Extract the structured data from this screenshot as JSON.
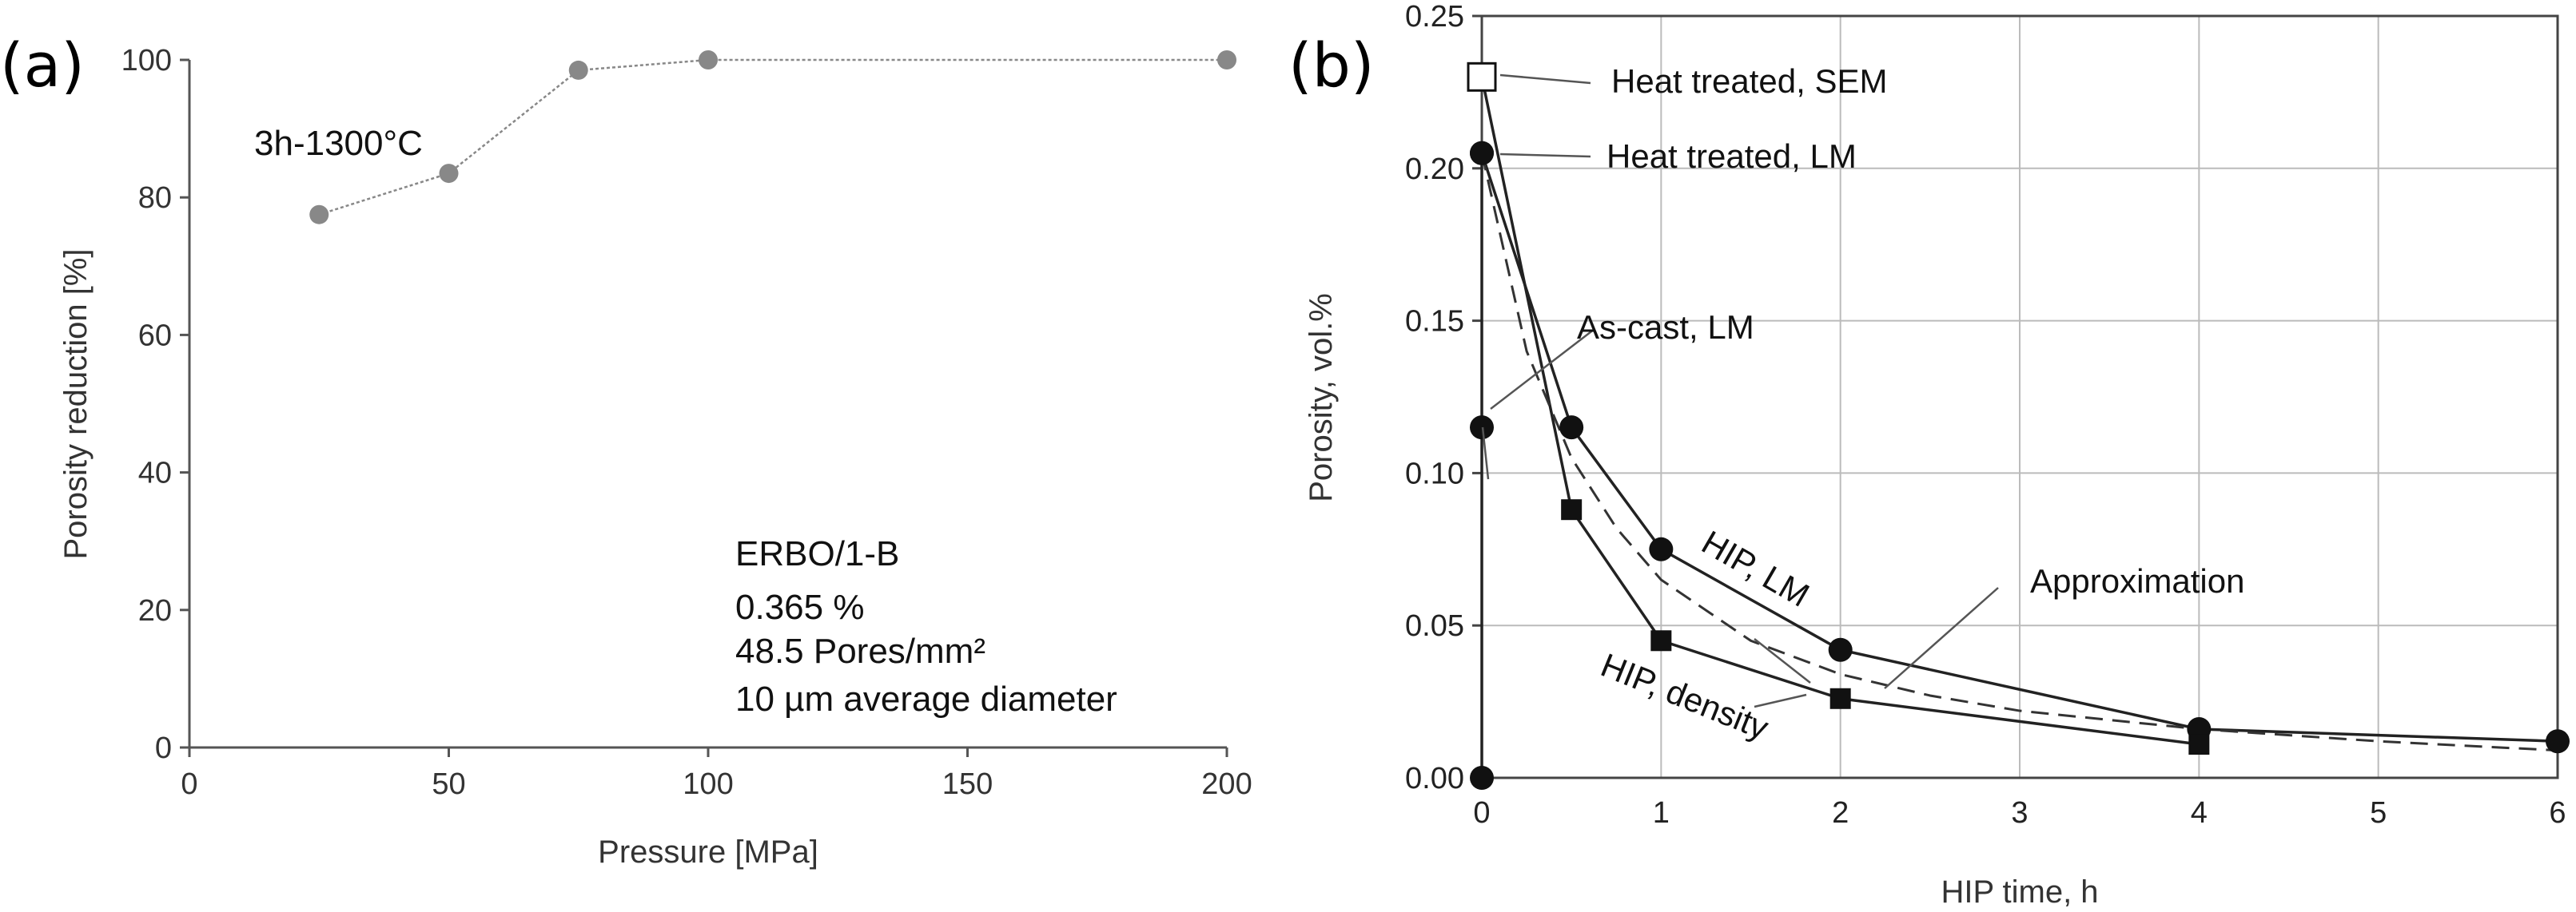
{
  "chart_data": [
    {
      "panel": "(a)",
      "type": "line",
      "xlabel": "Pressure [MPa]",
      "ylabel": "Porosity reduction [%]",
      "xlim": [
        0,
        200
      ],
      "ylim": [
        0,
        100
      ],
      "xticks": [
        0,
        50,
        100,
        150,
        200
      ],
      "yticks": [
        0,
        20,
        40,
        60,
        80,
        100
      ],
      "grid": false,
      "series": [
        {
          "name": "3h-1300°C",
          "x": [
            25,
            50,
            75,
            100,
            200
          ],
          "y": [
            77.5,
            83.5,
            98.5,
            100,
            100
          ]
        }
      ],
      "annotations": {
        "curve_label": "3h-1300°C",
        "info_lines": [
          "ERBO/1-B",
          "0.365 %",
          "48.5 Pores/mm²",
          "10 µm average diameter"
        ]
      }
    },
    {
      "panel": "(b)",
      "type": "line",
      "xlabel": "HIP time, h",
      "ylabel": "Porosity, vol.%",
      "xlim": [
        0,
        6
      ],
      "ylim": [
        0,
        0.25
      ],
      "xticks": [
        "0",
        "1",
        "2",
        "3",
        "4",
        "5",
        "6"
      ],
      "yticks": [
        "0.00",
        "0.05",
        "0.10",
        "0.15",
        "0.20",
        "0.25"
      ],
      "grid": true,
      "series": [
        {
          "name": "HIP, LM",
          "marker": "circle",
          "x": [
            0,
            0.5,
            1,
            2,
            4,
            6
          ],
          "y": [
            0.205,
            0.115,
            0.075,
            0.042,
            0.016,
            0.012
          ]
        },
        {
          "name": "HIP, density",
          "marker": "square",
          "x": [
            0,
            0.5,
            1,
            2,
            4
          ],
          "y": [
            0.23,
            0.088,
            0.045,
            0.026,
            0.011
          ]
        },
        {
          "name": "Approximation",
          "style": "dashed",
          "x": [
            0,
            0.25,
            0.5,
            0.75,
            1,
            1.5,
            2,
            2.5,
            3,
            4,
            5,
            6
          ],
          "y": [
            0.205,
            0.14,
            0.105,
            0.082,
            0.065,
            0.045,
            0.034,
            0.027,
            0.022,
            0.016,
            0.012,
            0.009
          ]
        }
      ],
      "extra_points": [
        {
          "name": "Heat treated, SEM",
          "marker": "open-square",
          "x": 0,
          "y": 0.23
        },
        {
          "name": "Heat treated, LM",
          "marker": "circle",
          "x": 0,
          "y": 0.205
        },
        {
          "name": "As-cast, LM",
          "marker": "circle",
          "x": 0,
          "y": 0.115
        },
        {
          "name": "origin",
          "marker": "circle",
          "x": 0,
          "y": 0.0
        }
      ],
      "annotations": {
        "heat_sem": "Heat treated, SEM",
        "heat_lm": "Heat treated, LM",
        "as_cast": "As-cast, LM",
        "hip_lm": "HIP, LM",
        "hip_density": "HIP, density",
        "approx": "Approximation"
      }
    }
  ]
}
